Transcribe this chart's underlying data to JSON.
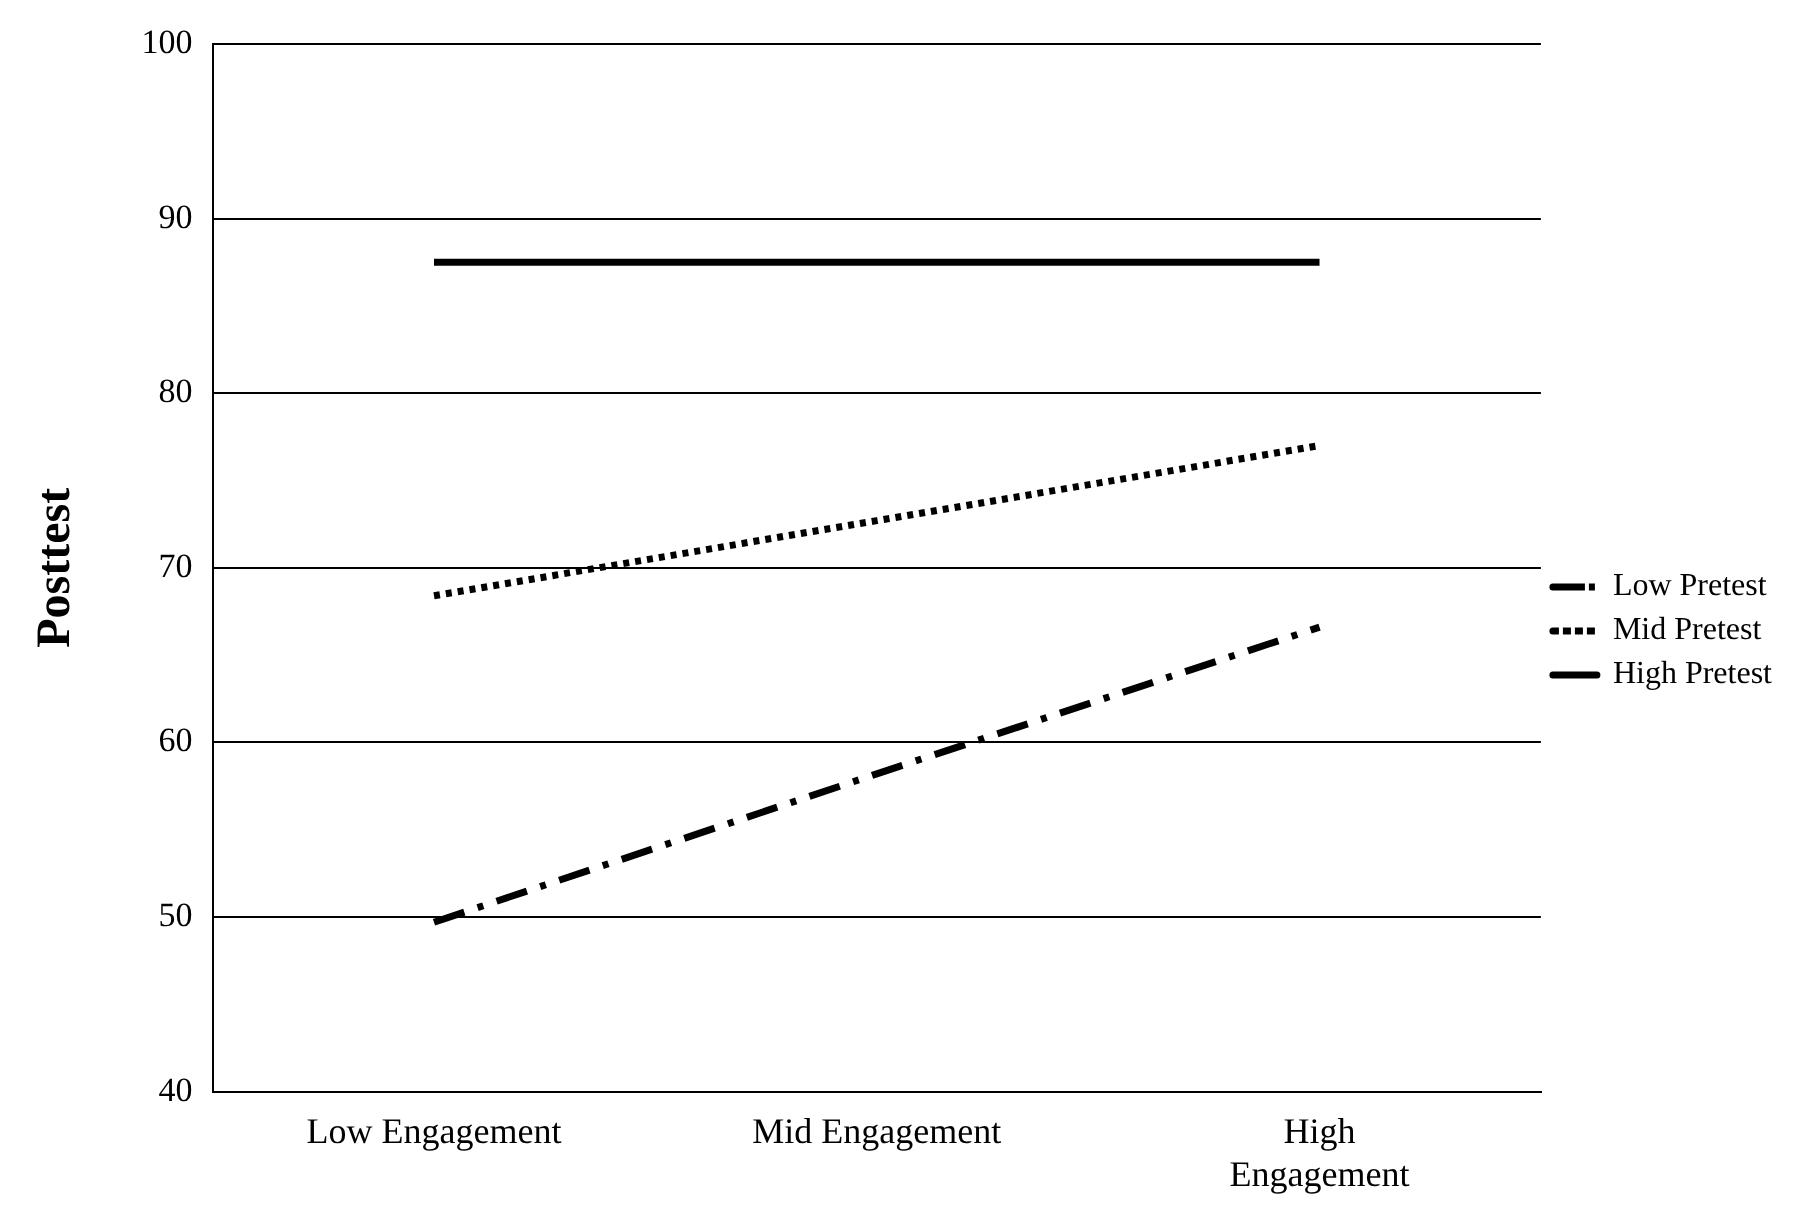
{
  "chart_data": {
    "type": "line",
    "ylabel": "Posttest",
    "categories": [
      "Low Engagement",
      "Mid Engagement",
      "High Engagement"
    ],
    "series": [
      {
        "name": "Low Pretest",
        "color": "#000000",
        "line_style": "dashed",
        "values": [
          49.7,
          58.2,
          66.6
        ]
      },
      {
        "name": "Mid Pretest",
        "color": "#000000",
        "line_style": "dotted",
        "values": [
          68.4,
          72.7,
          77.0
        ]
      },
      {
        "name": "High Pretest",
        "color": "#000000",
        "line_style": "solid",
        "values": [
          87.5,
          87.5,
          87.5
        ]
      }
    ],
    "ylim": [
      40,
      100
    ],
    "yticks": [
      40,
      50,
      60,
      70,
      80,
      90,
      100
    ],
    "grid": "y",
    "legend": "right",
    "marker": "none"
  }
}
